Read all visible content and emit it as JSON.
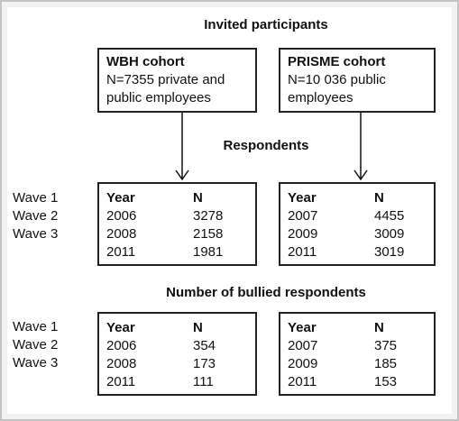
{
  "headings": {
    "invited": "Invited participants",
    "respondents": "Respondents",
    "bullied": "Number of bullied respondents"
  },
  "cohorts": [
    {
      "title": "WBH cohort",
      "description": "N=7355 private and\npublic employees"
    },
    {
      "title": "PRISME cohort",
      "description": "N=10 036 public\nemployees"
    }
  ],
  "waves": [
    "Wave 1",
    "Wave 2",
    "Wave 3"
  ],
  "columns": {
    "year": "Year",
    "n": "N"
  },
  "respondents": [
    {
      "rows": [
        {
          "year": "2006",
          "n": "3278"
        },
        {
          "year": "2008",
          "n": "2158"
        },
        {
          "year": "2011",
          "n": "1981"
        }
      ]
    },
    {
      "rows": [
        {
          "year": "2007",
          "n": "4455"
        },
        {
          "year": "2009",
          "n": "3009"
        },
        {
          "year": "2011",
          "n": "3019"
        }
      ]
    }
  ],
  "bullied": [
    {
      "rows": [
        {
          "year": "2006",
          "n": "354"
        },
        {
          "year": "2008",
          "n": "173"
        },
        {
          "year": "2011",
          "n": "111"
        }
      ]
    },
    {
      "rows": [
        {
          "year": "2007",
          "n": "375"
        },
        {
          "year": "2009",
          "n": "185"
        },
        {
          "year": "2011",
          "n": "153"
        }
      ]
    }
  ]
}
